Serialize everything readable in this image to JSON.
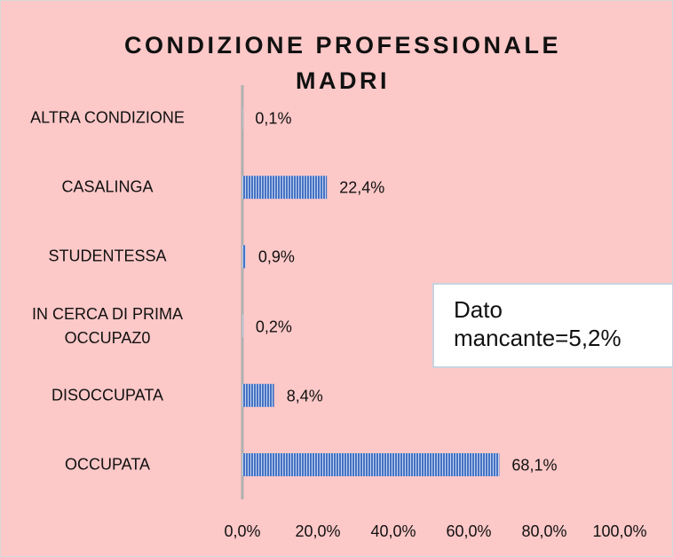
{
  "chart_data": {
    "type": "bar",
    "orientation": "horizontal",
    "title": "CONDIZIONE PROFESSIONALE MADRI",
    "categories": [
      "ALTRA CONDIZIONE",
      "CASALINGA",
      "STUDENTESSA",
      "IN CERCA DI PRIMA OCCUPAZ0",
      "DISOCCUPATA",
      "OCCUPATA"
    ],
    "values": [
      0.1,
      22.4,
      0.9,
      0.2,
      8.4,
      68.1
    ],
    "value_labels": [
      "0,1%",
      "22,4%",
      "0,9%",
      "0,2%",
      "8,4%",
      "68,1%"
    ],
    "color": "#4472c4",
    "xlim": [
      0,
      100
    ],
    "xticks": [
      {
        "value": 0,
        "label": "0,0%"
      },
      {
        "value": 20,
        "label": "20,0%"
      },
      {
        "value": 40,
        "label": "40,0%"
      },
      {
        "value": 60,
        "label": "60,0%"
      },
      {
        "value": 80,
        "label": "80,0%"
      },
      {
        "value": 100,
        "label": "100,0%"
      }
    ],
    "annotation": "Dato mancante=5,2%"
  }
}
